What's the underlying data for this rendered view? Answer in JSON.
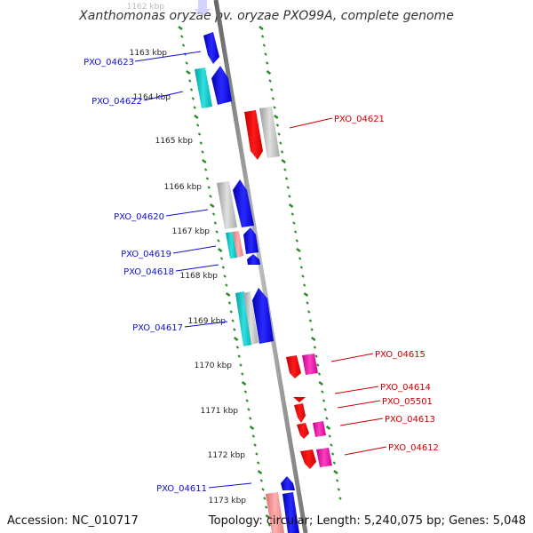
{
  "title": "Xanthomonas oryzae pv. oryzae PXO99A, complete genome",
  "accession": "Accession: NC_010717",
  "topology": "Topology: circular; Length: 5,240,075 bp; Genes: 5,048",
  "ticks": [
    "1162 kbp",
    "1163 kbp",
    "1164 kbp",
    "1165 kbp",
    "1166 kbp",
    "1167 kbp",
    "1168 kbp",
    "1169 kbp",
    "1170 kbp",
    "1171 kbp",
    "1172 kbp",
    "1173 kbp"
  ],
  "genes_left": [
    "PXO_04623",
    "PXO_04622",
    "PXO_04620",
    "PXO_04619",
    "PXO_04618",
    "PXO_04617",
    "PXO_04611"
  ],
  "genes_right": [
    "PXO_04621",
    "PXO_04615",
    "PXO_04614",
    "PXO_05501",
    "PXO_04613",
    "PXO_04612"
  ],
  "colors": {
    "forward_label": "#1010cc",
    "reverse_label": "#cc0000",
    "tick_green": "#2a8a2a",
    "backbone": "#888888"
  }
}
